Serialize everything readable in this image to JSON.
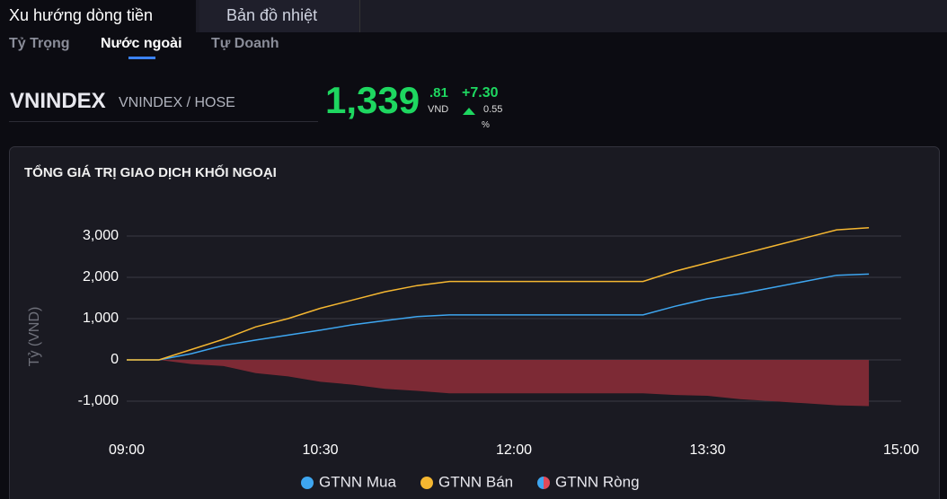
{
  "tabs": [
    "Xu hướng dòng tiền",
    "Bản đồ nhiệt"
  ],
  "subtabs": [
    "Tỷ Trọng",
    "Nước ngoài",
    "Tự Doanh"
  ],
  "ticker": {
    "symbol": "VNINDEX",
    "exchange": "VNINDEX / HOSE",
    "price_int": "1,339",
    "price_dec": ".81",
    "currency": "VND",
    "change": "+7.30",
    "change_pct": "0.55",
    "pct_sign": "%"
  },
  "chart_data": {
    "type": "line",
    "title": "TỔNG GIÁ TRỊ GIAO DỊCH KHỐI NGOẠI",
    "y_label": "Tỷ (VND)",
    "x": [
      "09:00",
      "09:15",
      "09:30",
      "09:45",
      "10:00",
      "10:15",
      "10:30",
      "10:45",
      "11:00",
      "11:15",
      "11:30",
      "13:00",
      "13:15",
      "13:30",
      "13:45",
      "14:00",
      "14:15",
      "14:30",
      "14:45"
    ],
    "series": [
      {
        "name": "GTNN Mua",
        "color": "#3ea6f0",
        "values": [
          0,
          0,
          150,
          350,
          480,
          600,
          720,
          850,
          950,
          1050,
          1090,
          1090,
          1300,
          1480,
          1600,
          1750,
          1900,
          2050,
          2080
        ]
      },
      {
        "name": "GTNN Bán",
        "color": "#f5b731",
        "values": [
          0,
          0,
          250,
          500,
          800,
          1000,
          1250,
          1450,
          1650,
          1800,
          1900,
          1900,
          2150,
          2350,
          2550,
          2750,
          2950,
          3150,
          3200
        ]
      },
      {
        "name": "GTNN Ròng",
        "color": "#7d2a35",
        "values": [
          0,
          0,
          -100,
          -150,
          -320,
          -400,
          -530,
          -600,
          -700,
          -750,
          -810,
          -810,
          -850,
          -870,
          -950,
          -1000,
          -1050,
          -1100,
          -1120
        ]
      }
    ],
    "xlim": [
      "09:00",
      "15:00"
    ],
    "xticks": [
      "09:00",
      "10:30",
      "12:00",
      "13:30",
      "15:00"
    ],
    "ylim": [
      -1500,
      3500
    ],
    "yticks": [
      {
        "value": -1000,
        "label": "-1,000"
      },
      0,
      {
        "value": 1000,
        "label": "1,000"
      },
      {
        "value": 2000,
        "label": "2,000"
      },
      {
        "value": 3000,
        "label": "3,000"
      }
    ],
    "grid": true
  }
}
